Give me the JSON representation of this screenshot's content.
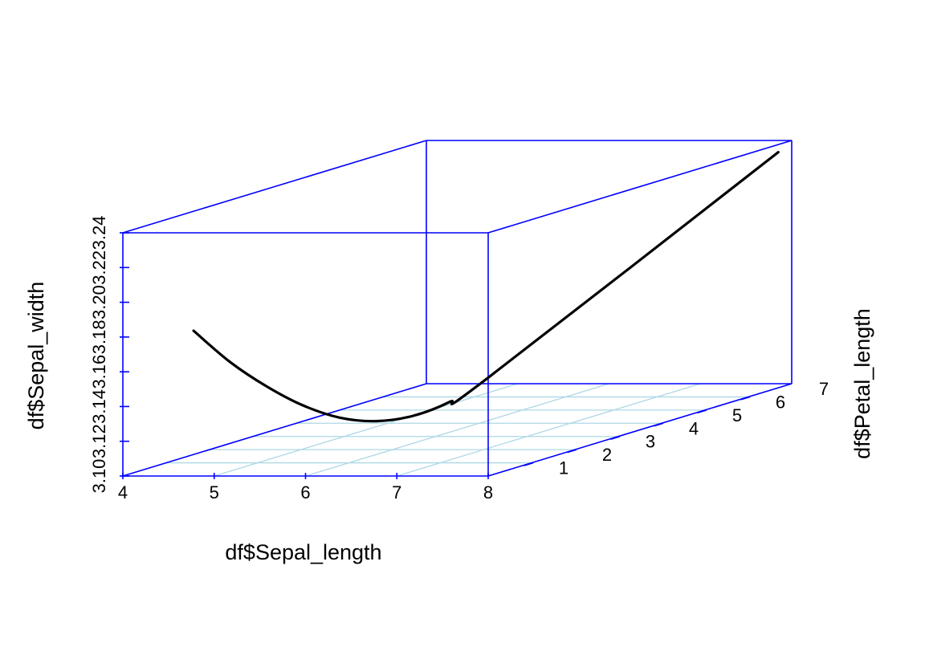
{
  "chart_data": {
    "type": "line",
    "subtype": "3d-scatterplot",
    "title": "",
    "xlabel": "df$Sepal_length",
    "ylabel": "df$Petal_length",
    "zlabel": "df$Sepal_width",
    "xlim": [
      4,
      8
    ],
    "ylim": [
      0,
      7
    ],
    "zlim": [
      3.1,
      3.24
    ],
    "x_ticks": [
      "4",
      "5",
      "6",
      "7",
      "8"
    ],
    "y_ticks": [
      "1",
      "2",
      "3",
      "4",
      "5",
      "6",
      "7"
    ],
    "z_ticks": [
      "3.10",
      "3.12",
      "3.14",
      "3.16",
      "3.18",
      "3.20",
      "3.22",
      "3.24"
    ],
    "grid": true,
    "colors": {
      "box": "#0000ff",
      "grid": "#add8e6",
      "curve": "#000000"
    },
    "series": [
      {
        "x": [
          4.3,
          4.7,
          5.1,
          5.5,
          5.9,
          6.3,
          6.7,
          7.1,
          7.5,
          7.9
        ],
        "y": [
          1.0,
          1.0,
          1.0,
          1.0,
          1.0,
          1.0,
          1.0,
          1.0,
          1.0,
          6.9
        ],
        "z": [
          3.176,
          3.158,
          3.144,
          3.133,
          3.126,
          3.124,
          3.127,
          3.135,
          3.148,
          3.234
        ]
      }
    ]
  }
}
